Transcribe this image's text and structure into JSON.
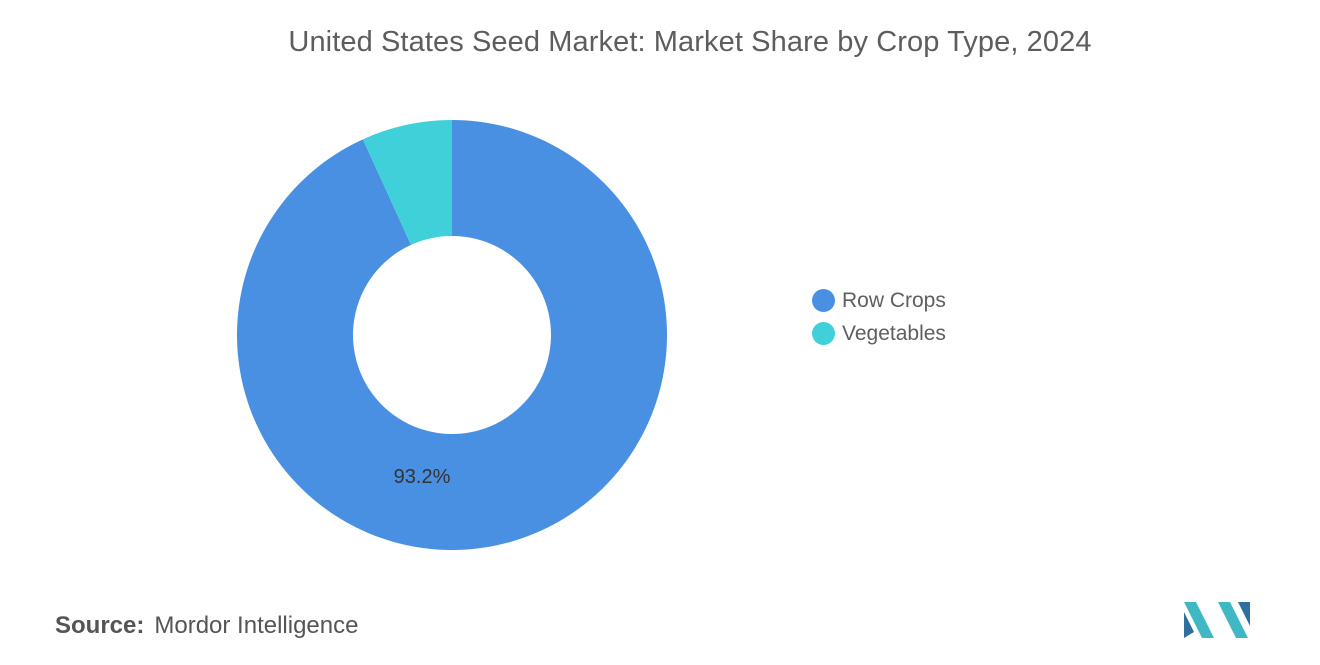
{
  "chart_data": {
    "type": "pie",
    "title": "United States Seed Market: Market Share by Crop Type, 2024",
    "categories": [
      "Row Crops",
      "Vegetables"
    ],
    "values": [
      93.2,
      6.8
    ],
    "data_labels": [
      "93.2%",
      ""
    ],
    "colors": [
      "#4a90e2",
      "#40d0da"
    ],
    "legend_position": "right"
  },
  "source": {
    "label": "Source:",
    "value": "Mordor Intelligence"
  },
  "logo": {
    "name": "mordor-intelligence-logo",
    "colors": [
      "#3fb8c4",
      "#2e6f9e"
    ]
  }
}
